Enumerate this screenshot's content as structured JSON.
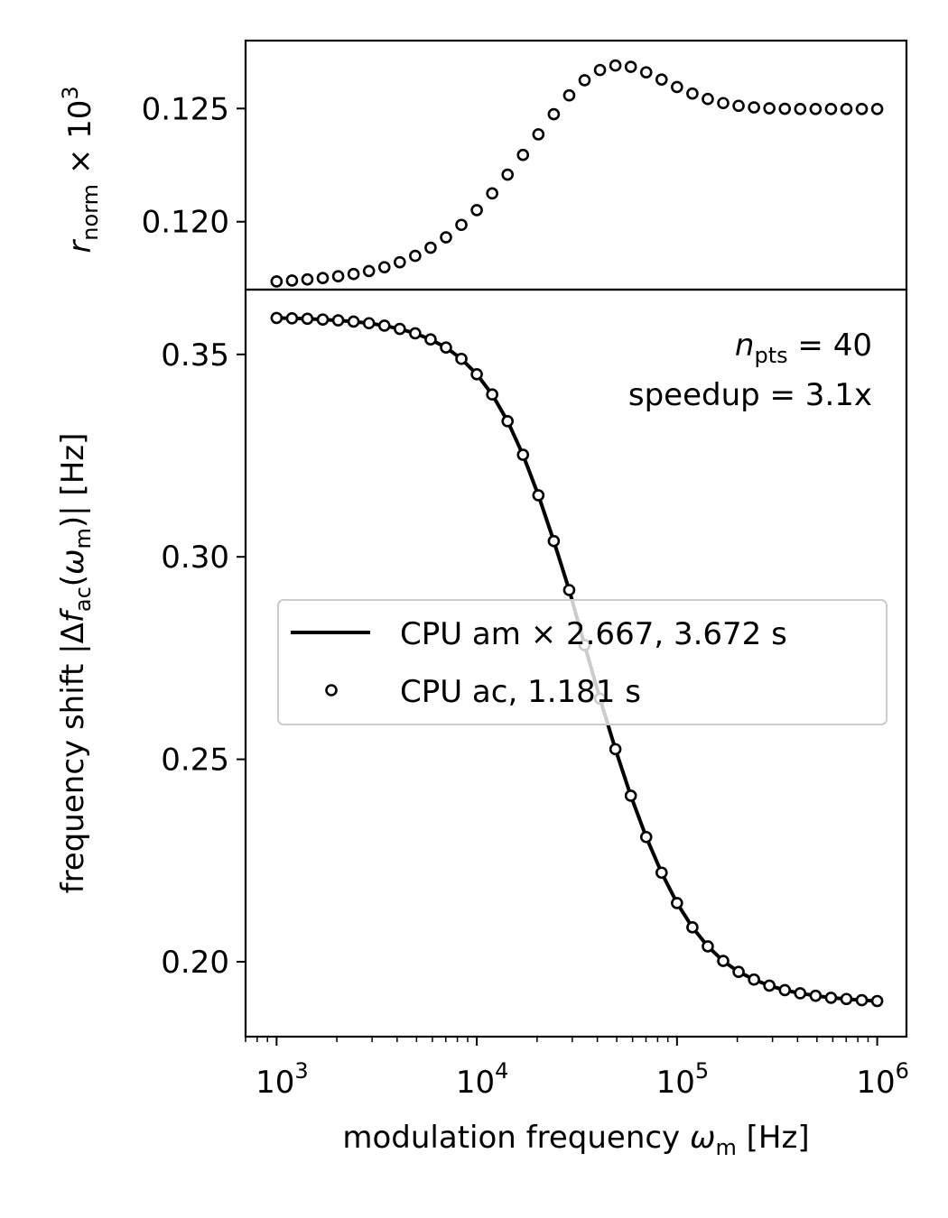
{
  "chart_data": [
    {
      "type": "scatter",
      "panel": "top",
      "ylabel": {
        "base": "r",
        "sub": "norm",
        "suffix": " × 10",
        "sup": "3"
      },
      "xscale": "log",
      "xlim": [
        700,
        1400000
      ],
      "ylim": [
        0.117,
        0.128
      ],
      "yticks": [
        0.12,
        0.125
      ],
      "ytick_labels": [
        "0.120",
        "0.125"
      ],
      "grid": false,
      "series": [
        {
          "marker": "open-circle",
          "x": [
            1000,
            1194,
            1425,
            1701,
            2031,
            2424,
            2894,
            3455,
            4125,
            4924,
            5878,
            7017,
            8377,
            10000,
            11938,
            14251,
            17013,
            20309,
            24245,
            28943,
            34551,
            41246,
            49239,
            58780,
            70170,
            83768,
            100000,
            119378,
            142510,
            170125,
            203092,
            242446,
            289427,
            345511,
            412463,
            492388,
            587802,
            701704,
            837678,
            1000000
          ],
          "values": [
            0.11736,
            0.1174,
            0.11745,
            0.11751,
            0.11759,
            0.11769,
            0.11782,
            0.11799,
            0.11821,
            0.11849,
            0.11885,
            0.11931,
            0.11986,
            0.12051,
            0.12125,
            0.12208,
            0.12295,
            0.12386,
            0.12475,
            0.12558,
            0.12625,
            0.1267,
            0.1269,
            0.12684,
            0.1266,
            0.12628,
            0.12595,
            0.12566,
            0.12542,
            0.12524,
            0.12512,
            0.12505,
            0.12501,
            0.12499,
            0.12498,
            0.12498,
            0.12498,
            0.12498,
            0.12498,
            0.12498
          ]
        }
      ]
    },
    {
      "type": "line",
      "panel": "bottom",
      "xlabel": {
        "prefix": "modulation frequency ",
        "var": "ω",
        "sub": "m",
        "suffix": " [Hz]"
      },
      "ylabel": {
        "prefix": "frequency shift |Δ",
        "var": "f",
        "sub": "ac",
        "mid": "(",
        "var2": "ω",
        "sub2": "m",
        "suffix": ")| [Hz]"
      },
      "xscale": "log",
      "xlim": [
        700,
        1400000
      ],
      "ylim": [
        0.1815,
        0.366
      ],
      "xticks": [
        1000,
        10000,
        100000,
        1000000
      ],
      "xtick_labels": [
        {
          "base": "10",
          "exp": "3"
        },
        {
          "base": "10",
          "exp": "4"
        },
        {
          "base": "10",
          "exp": "5"
        },
        {
          "base": "10",
          "exp": "6"
        }
      ],
      "yticks": [
        0.2,
        0.25,
        0.3,
        0.35
      ],
      "ytick_labels": [
        "0.20",
        "0.25",
        "0.30",
        "0.35"
      ],
      "grid": false,
      "annotation": {
        "line1_var": "n",
        "line1_sub": "pts",
        "line1_rest": " = 40",
        "line2": "speedup = 3.1x"
      },
      "legend": {
        "placement": "center-right",
        "entries": [
          {
            "label": "CPU am × 2.667, 3.672 s",
            "style": "line"
          },
          {
            "label": "CPU ac, 1.181 s",
            "style": "open-circle"
          }
        ]
      },
      "x": [
        1000,
        1194,
        1425,
        1701,
        2031,
        2424,
        2894,
        3455,
        4125,
        4924,
        5878,
        7017,
        8377,
        10000,
        11938,
        14251,
        17013,
        20309,
        24245,
        28943,
        34551,
        41246,
        49239,
        58780,
        70170,
        83768,
        100000,
        119378,
        142510,
        170125,
        203092,
        242446,
        289427,
        345511,
        412463,
        492388,
        587802,
        701704,
        837678,
        1000000
      ],
      "series": [
        {
          "name": "CPU am × 2.667, 3.672 s",
          "style": "line",
          "values": [
            0.359,
            0.3589,
            0.3588,
            0.3586,
            0.3584,
            0.3581,
            0.3577,
            0.3571,
            0.3563,
            0.3552,
            0.3537,
            0.3517,
            0.3489,
            0.3451,
            0.3401,
            0.3335,
            0.3252,
            0.3152,
            0.3039,
            0.2918,
            0.2782,
            0.265,
            0.2525,
            0.241,
            0.2308,
            0.222,
            0.2145,
            0.2085,
            0.2038,
            0.2002,
            0.1975,
            0.1956,
            0.1941,
            0.193,
            0.1922,
            0.1916,
            0.1911,
            0.1908,
            0.1905,
            0.1903
          ]
        },
        {
          "name": "CPU ac, 1.181 s",
          "style": "open-circle",
          "values": [
            0.359,
            0.3589,
            0.3588,
            0.3586,
            0.3584,
            0.3581,
            0.3577,
            0.3571,
            0.3563,
            0.3552,
            0.3537,
            0.3517,
            0.3489,
            0.3451,
            0.3401,
            0.3335,
            0.3252,
            0.3152,
            0.3039,
            0.2918,
            0.2782,
            0.265,
            0.2525,
            0.241,
            0.2308,
            0.222,
            0.2145,
            0.2085,
            0.2038,
            0.2002,
            0.1975,
            0.1956,
            0.1941,
            0.193,
            0.1922,
            0.1916,
            0.1911,
            0.1908,
            0.1905,
            0.1903
          ]
        }
      ]
    }
  ]
}
